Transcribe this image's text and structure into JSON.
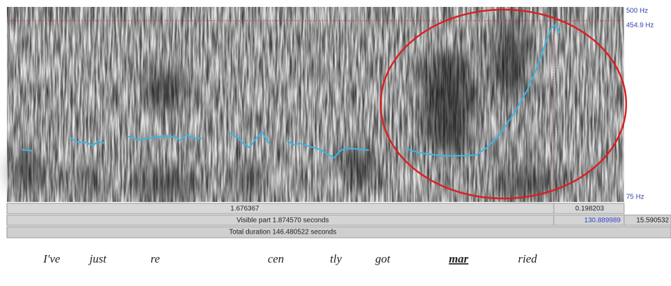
{
  "frequency_labels": {
    "top": "500 Hz",
    "cursor": "454.9 Hz",
    "bottom": "75 Hz"
  },
  "time_bars": {
    "selection": "1.676367",
    "right_segment": "0.198203",
    "visible_part": "Visible part 1.874570 seconds",
    "visible_right": "130.889989",
    "end_time": "15.590532",
    "total_duration": "Total duration 146.480522 seconds"
  },
  "words": [
    "I've",
    "just",
    "re",
    "cen",
    "tly",
    "got",
    "mar",
    "ried"
  ]
}
